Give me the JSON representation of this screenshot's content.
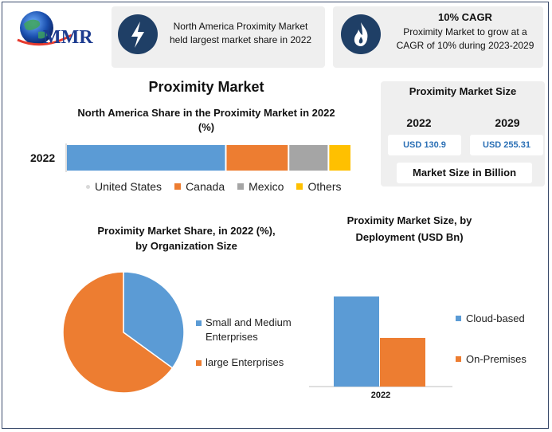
{
  "logo": {
    "text": "MMR"
  },
  "header": {
    "card1": {
      "line1": "North America Proximity Market",
      "line2": "held largest market share in 2022",
      "icon": "lightning-icon"
    },
    "card2": {
      "title": "10% CAGR",
      "line1": "Proximity Market to grow at a",
      "line2": "CAGR of 10% during 2023-2029",
      "icon": "flame-icon"
    }
  },
  "main_title": "Proximity Market",
  "size_panel": {
    "title": "Proximity Market Size",
    "years": [
      "2022",
      "2029"
    ],
    "values": [
      "USD 130.9",
      "USD 255.31"
    ],
    "footer": "Market Size in Billion"
  },
  "colors": {
    "blue": "#5b9bd5",
    "orange": "#ed7d31",
    "gray": "#a5a5a5",
    "yellow": "#ffc000",
    "navy": "#1f3f66"
  },
  "chart_data": [
    {
      "type": "bar",
      "orientation": "horizontal-stacked",
      "title_line1": "North America Share in the Proximity Market in 2022",
      "title_line2": "(%)",
      "categories": [
        "2022"
      ],
      "series": [
        {
          "name": "United States",
          "values": [
            56
          ]
        },
        {
          "name": "Canada",
          "values": [
            22
          ]
        },
        {
          "name": "Mexico",
          "values": [
            14
          ]
        },
        {
          "name": "Others",
          "values": [
            8
          ]
        }
      ],
      "xlim": [
        0,
        100
      ],
      "legend": "bottom",
      "grid": false
    },
    {
      "type": "pie",
      "title_line1": "Proximity Market Share, in 2022 (%),",
      "title_line2": "by Organization Size",
      "labels": [
        "Small and Medium Enterprises",
        "large Enterprises"
      ],
      "legend_lines": [
        [
          "Small and Medium",
          "Enterprises"
        ],
        [
          "large Enterprises"
        ]
      ],
      "values": [
        35,
        65
      ],
      "legend": "right"
    },
    {
      "type": "bar",
      "title_line1": "Proximity Market Size, by",
      "title_line2": "Deployment (USD Bn)",
      "categories": [
        "2022"
      ],
      "series": [
        {
          "name": "Cloud-based",
          "values": [
            85
          ]
        },
        {
          "name": "On-Premises",
          "values": [
            45.9
          ]
        }
      ],
      "ylim": [
        0,
        100
      ],
      "legend": "right",
      "grid": false
    }
  ]
}
